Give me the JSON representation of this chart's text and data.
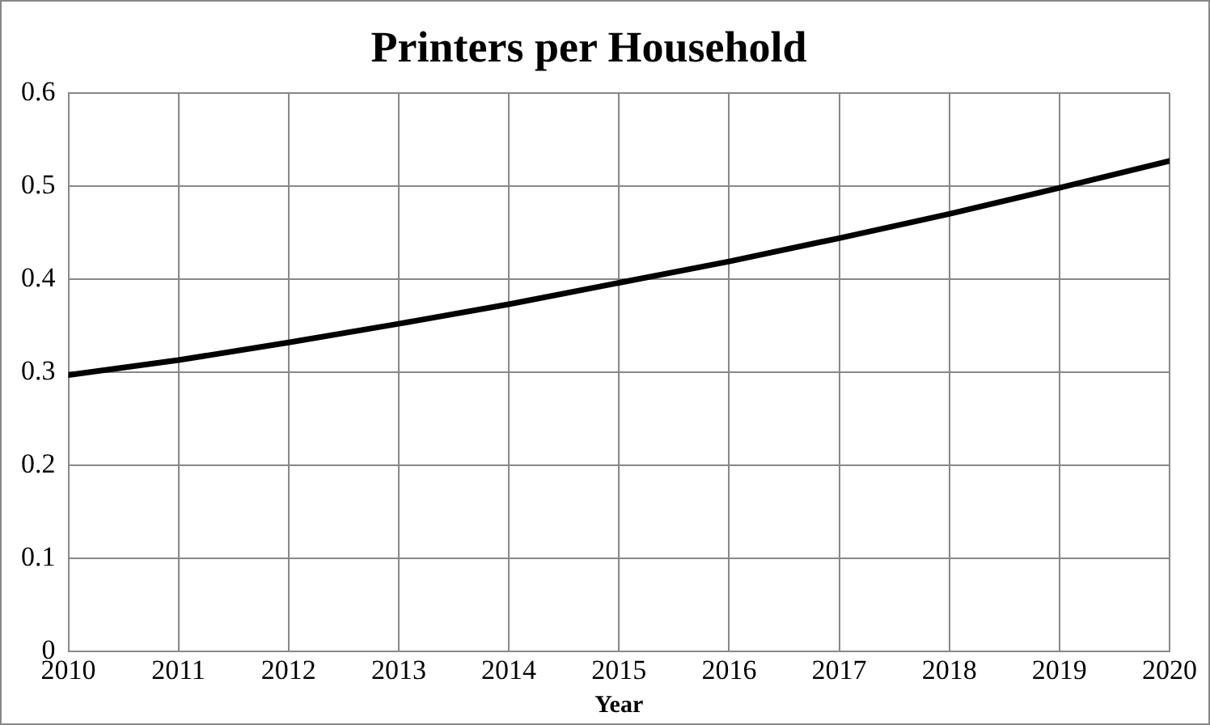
{
  "chart_data": {
    "type": "line",
    "title": "Printers per Household",
    "xlabel": "Year",
    "x": [
      2010,
      2011,
      2012,
      2013,
      2014,
      2015,
      2016,
      2017,
      2018,
      2019,
      2020
    ],
    "series": [
      {
        "color": "#000000",
        "values": [
          0.297,
          0.313,
          0.332,
          0.352,
          0.373,
          0.396,
          0.419,
          0.444,
          0.47,
          0.498,
          0.527
        ]
      }
    ],
    "xlim": [
      2010,
      2020
    ],
    "xticks": [
      2010,
      2011,
      2012,
      2013,
      2014,
      2015,
      2016,
      2017,
      2018,
      2019,
      2020
    ],
    "ylim": [
      0,
      0.6
    ],
    "yticks": [
      0,
      0.1,
      0.2,
      0.3,
      0.4,
      0.5,
      0.6
    ],
    "grid": true,
    "legend": false,
    "marker": "none",
    "line_style": "solid"
  }
}
